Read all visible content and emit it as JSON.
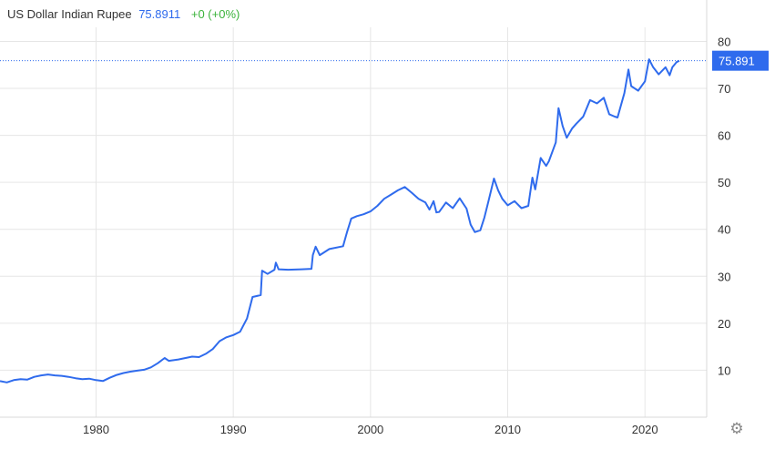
{
  "legend": {
    "symbol": "US Dollar Indian Rupee",
    "price": "75.8911",
    "change": "+0 (+0%)"
  },
  "last_value_label": "75.891",
  "colors": {
    "line": "#2f6bed",
    "grid": "#e6e6e6",
    "badge": "#2f6bed",
    "change_positive": "#3bb33b"
  },
  "settings_icon": "gear-icon",
  "chart_data": {
    "type": "line",
    "title": "",
    "xlabel": "",
    "ylabel": "",
    "xlim": [
      1973,
      2024.5
    ],
    "ylim": [
      0,
      83
    ],
    "x_ticks": [
      1980,
      1990,
      2000,
      2010,
      2020
    ],
    "y_ticks": [
      10,
      20,
      30,
      40,
      50,
      60,
      70,
      80
    ],
    "grid": true,
    "y_axis_position": "right",
    "series": [
      {
        "values": [
          [
            1973.0,
            7.7
          ],
          [
            1973.5,
            7.4
          ],
          [
            1974.0,
            7.9
          ],
          [
            1974.5,
            8.1
          ],
          [
            1975.0,
            8.0
          ],
          [
            1975.5,
            8.6
          ],
          [
            1976.0,
            8.9
          ],
          [
            1976.5,
            9.1
          ],
          [
            1977.0,
            8.9
          ],
          [
            1977.5,
            8.8
          ],
          [
            1978.0,
            8.6
          ],
          [
            1978.5,
            8.3
          ],
          [
            1979.0,
            8.1
          ],
          [
            1979.5,
            8.2
          ],
          [
            1980.0,
            7.9
          ],
          [
            1980.5,
            7.7
          ],
          [
            1981.0,
            8.4
          ],
          [
            1981.5,
            9.0
          ],
          [
            1982.0,
            9.4
          ],
          [
            1982.5,
            9.7
          ],
          [
            1983.0,
            9.9
          ],
          [
            1983.5,
            10.1
          ],
          [
            1984.0,
            10.6
          ],
          [
            1984.5,
            11.5
          ],
          [
            1985.0,
            12.6
          ],
          [
            1985.3,
            12.0
          ],
          [
            1986.0,
            12.3
          ],
          [
            1987.0,
            12.9
          ],
          [
            1987.5,
            12.8
          ],
          [
            1988.0,
            13.5
          ],
          [
            1988.5,
            14.5
          ],
          [
            1989.0,
            16.2
          ],
          [
            1989.5,
            17.0
          ],
          [
            1990.0,
            17.5
          ],
          [
            1990.5,
            18.2
          ],
          [
            1991.0,
            21.0
          ],
          [
            1991.4,
            25.6
          ],
          [
            1991.7,
            25.8
          ],
          [
            1992.0,
            26.0
          ],
          [
            1992.1,
            31.2
          ],
          [
            1992.5,
            30.5
          ],
          [
            1993.0,
            31.4
          ],
          [
            1993.1,
            32.9
          ],
          [
            1993.3,
            31.5
          ],
          [
            1994.0,
            31.4
          ],
          [
            1995.0,
            31.5
          ],
          [
            1995.7,
            31.6
          ],
          [
            1995.8,
            34.5
          ],
          [
            1996.0,
            36.3
          ],
          [
            1996.3,
            34.5
          ],
          [
            1997.0,
            35.8
          ],
          [
            1998.0,
            36.4
          ],
          [
            1998.3,
            39.5
          ],
          [
            1998.6,
            42.3
          ],
          [
            1999.0,
            42.8
          ],
          [
            1999.5,
            43.2
          ],
          [
            2000.0,
            43.8
          ],
          [
            2000.5,
            45.0
          ],
          [
            2001.0,
            46.5
          ],
          [
            2001.5,
            47.4
          ],
          [
            2002.0,
            48.3
          ],
          [
            2002.5,
            49.0
          ],
          [
            2003.0,
            47.8
          ],
          [
            2003.5,
            46.5
          ],
          [
            2004.0,
            45.7
          ],
          [
            2004.3,
            44.2
          ],
          [
            2004.6,
            46.0
          ],
          [
            2004.8,
            43.6
          ],
          [
            2005.0,
            43.7
          ],
          [
            2005.5,
            45.7
          ],
          [
            2006.0,
            44.5
          ],
          [
            2006.5,
            46.6
          ],
          [
            2007.0,
            44.4
          ],
          [
            2007.3,
            41.0
          ],
          [
            2007.6,
            39.4
          ],
          [
            2008.0,
            39.8
          ],
          [
            2008.3,
            42.5
          ],
          [
            2008.6,
            46.0
          ],
          [
            2009.0,
            50.8
          ],
          [
            2009.3,
            48.3
          ],
          [
            2009.6,
            46.5
          ],
          [
            2010.0,
            45.1
          ],
          [
            2010.5,
            46.0
          ],
          [
            2011.0,
            44.5
          ],
          [
            2011.5,
            45.0
          ],
          [
            2011.8,
            51.0
          ],
          [
            2012.0,
            48.5
          ],
          [
            2012.4,
            55.2
          ],
          [
            2012.8,
            53.5
          ],
          [
            2013.0,
            54.5
          ],
          [
            2013.5,
            58.5
          ],
          [
            2013.7,
            65.8
          ],
          [
            2014.0,
            62.0
          ],
          [
            2014.3,
            59.5
          ],
          [
            2014.7,
            61.5
          ],
          [
            2015.0,
            62.5
          ],
          [
            2015.5,
            64.0
          ],
          [
            2016.0,
            67.5
          ],
          [
            2016.5,
            66.8
          ],
          [
            2017.0,
            68.0
          ],
          [
            2017.4,
            64.5
          ],
          [
            2017.8,
            64.0
          ],
          [
            2018.0,
            63.8
          ],
          [
            2018.5,
            69.0
          ],
          [
            2018.8,
            74.0
          ],
          [
            2019.0,
            70.5
          ],
          [
            2019.5,
            69.5
          ],
          [
            2020.0,
            71.5
          ],
          [
            2020.3,
            76.2
          ],
          [
            2020.6,
            74.5
          ],
          [
            2021.0,
            73.0
          ],
          [
            2021.5,
            74.5
          ],
          [
            2021.8,
            72.8
          ],
          [
            2022.0,
            74.5
          ],
          [
            2022.3,
            75.6
          ],
          [
            2022.5,
            75.89
          ]
        ]
      }
    ],
    "last_value": 75.891
  }
}
